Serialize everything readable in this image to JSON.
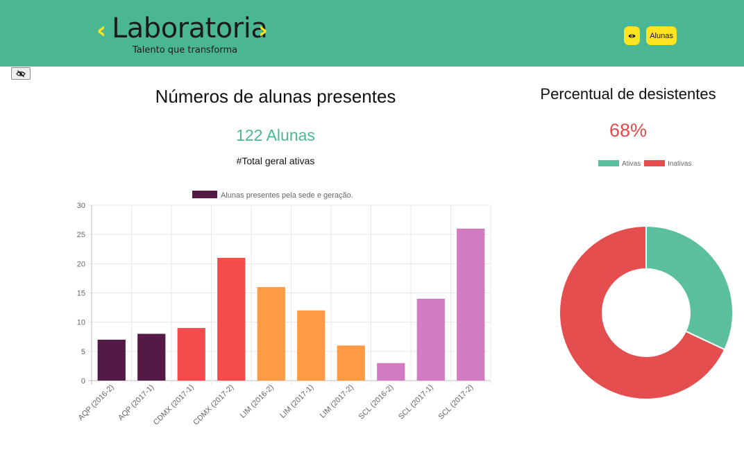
{
  "header": {
    "logo_text": "Laboratoria",
    "logo_tagline": "Talento que transforma",
    "eye_button_icon": "eye-icon",
    "alunas_button_label": "Alunas"
  },
  "toggle_button": {
    "icon": "eye-slash-icon"
  },
  "left_panel": {
    "title": "Números de alunas presentes",
    "count_text": "122 Alunas",
    "subtitle": "#Total geral ativas"
  },
  "right_panel": {
    "title": "Percentual de desistentes",
    "percent_text": "68%"
  },
  "colors": {
    "brand_green": "#4bb792",
    "brand_yellow": "#ffe521",
    "dark_purple": "#521a45",
    "red": "#f44c4c",
    "orange": "#ff9b44",
    "pink": "#d17bc2",
    "donut_green": "#5abf9a",
    "donut_red": "#e44e4e"
  },
  "chart_data": [
    {
      "type": "bar",
      "legend_label": "Alunas presentes pela sede e geração.",
      "legend_position": "top",
      "categories": [
        "AQP (2016-2)",
        "AQP (2017-1)",
        "CDMX (2017-1)",
        "CDMX (2017-2)",
        "LIM (2016-2)",
        "LIM (2017-1)",
        "LIM (2017-2)",
        "SCL (2016-2)",
        "SCL (2017-1)",
        "SCL (2017-2)"
      ],
      "values": [
        7,
        8,
        9,
        21,
        16,
        12,
        6,
        3,
        14,
        26
      ],
      "bar_colors": [
        "#521a45",
        "#521a45",
        "#f44c4c",
        "#f44c4c",
        "#ff9b44",
        "#ff9b44",
        "#ff9b44",
        "#d17bc2",
        "#d17bc2",
        "#d17bc2"
      ],
      "ylim": [
        0,
        30
      ],
      "yticks": [
        0,
        5,
        10,
        15,
        20,
        25,
        30
      ],
      "grid": true
    },
    {
      "type": "pie",
      "variant": "doughnut",
      "legend_position": "top",
      "labels": [
        "Ativas",
        "Inativas"
      ],
      "values": [
        32,
        68
      ],
      "colors": [
        "#5abf9a",
        "#e44e4e"
      ]
    }
  ]
}
